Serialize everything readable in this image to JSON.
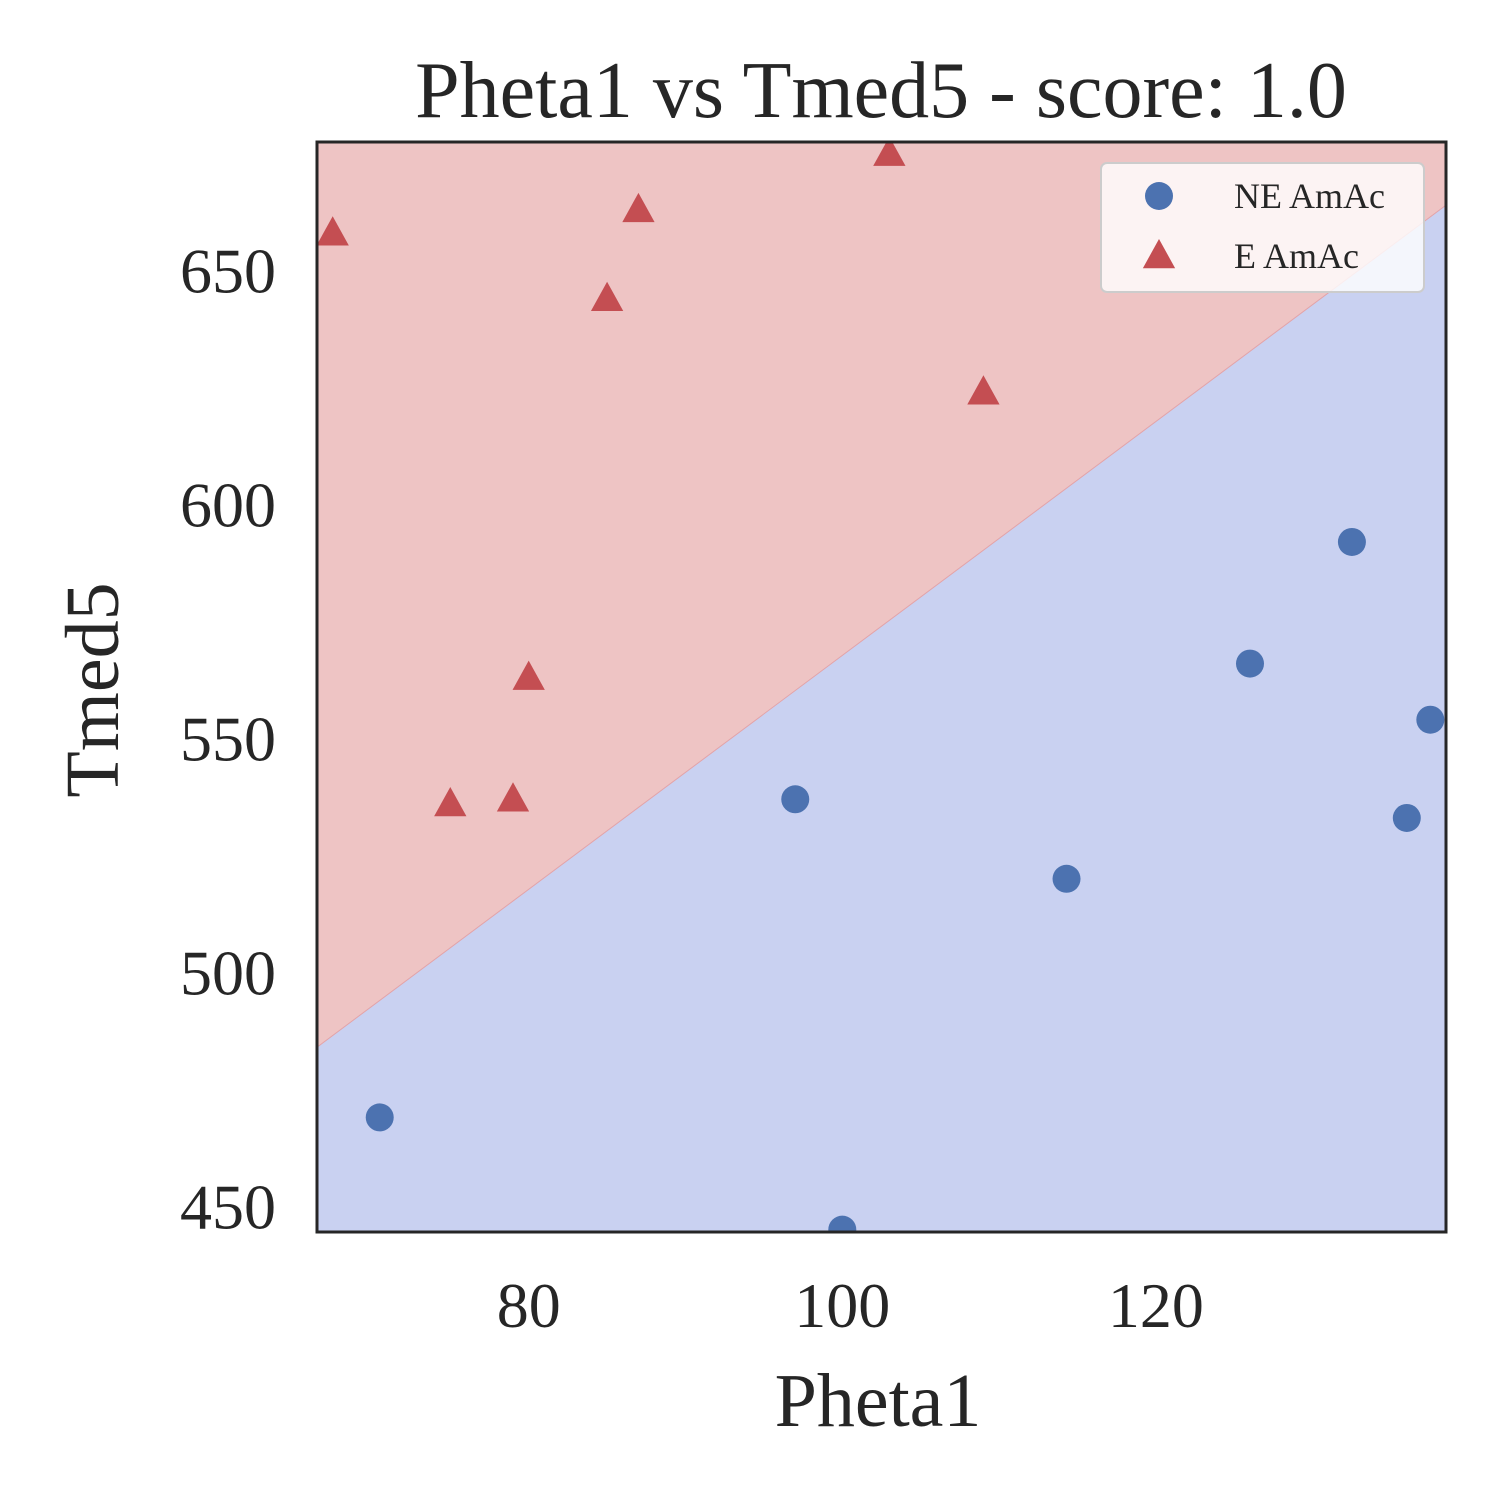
{
  "chart_data": {
    "type": "scatter",
    "title": "Pheta1 vs Tmed5 - score: 1.0",
    "xlabel": "Pheta1",
    "ylabel": "Tmed5",
    "xlim": [
      66.5,
      138.5
    ],
    "ylim": [
      444.5,
      677.5
    ],
    "xticks": [
      80,
      100,
      120
    ],
    "yticks": [
      450,
      500,
      550,
      600,
      650
    ],
    "grid": false,
    "legend_position": "top-right",
    "decision_boundary": {
      "description": "linear",
      "points": [
        [
          66.5,
          484
        ],
        [
          138.5,
          664
        ]
      ],
      "upper_region_color": "#eec4c4",
      "lower_region_color": "#c9d1f1"
    },
    "series": [
      {
        "name": "NE AmAc",
        "marker": "circle",
        "color": "#4c72b0",
        "points": [
          [
            70.5,
            469
          ],
          [
            97,
            537
          ],
          [
            100,
            445
          ],
          [
            114.3,
            520
          ],
          [
            126,
            566
          ],
          [
            132.5,
            592
          ],
          [
            136,
            533
          ],
          [
            137.5,
            554
          ]
        ]
      },
      {
        "name": "E AmAc",
        "marker": "triangle",
        "color": "#c44e52",
        "points": [
          [
            67.5,
            658
          ],
          [
            75,
            536
          ],
          [
            79,
            537
          ],
          [
            80,
            563
          ],
          [
            85,
            644
          ],
          [
            87,
            663
          ],
          [
            103,
            675
          ],
          [
            109,
            624
          ]
        ]
      }
    ]
  }
}
